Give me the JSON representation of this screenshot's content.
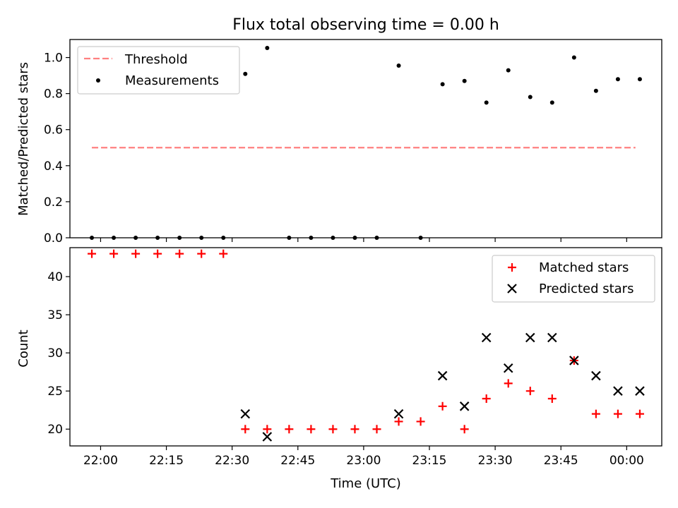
{
  "figure": {
    "title": "Flux total observing time = 0.00 h"
  },
  "chart_data": [
    {
      "type": "scatter",
      "title": "Flux total observing time = 0.00 h",
      "xlabel": "",
      "ylabel": "Matched/Predicted stars",
      "ylim": [
        0.0,
        1.1
      ],
      "yticks": [
        "0.0",
        "0.2",
        "0.4",
        "0.6",
        "0.8",
        "1.0"
      ],
      "xlim": [
        "21:53",
        "00:08"
      ],
      "xticks": [
        "22:00",
        "22:15",
        "22:30",
        "22:45",
        "23:00",
        "23:15",
        "23:30",
        "23:45",
        "00:00"
      ],
      "xticklabels_visible": false,
      "grid": false,
      "legend_position": "top-left",
      "threshold": {
        "name": "Threshold",
        "value": 0.5,
        "x_start": "21:58",
        "x_end": "00:02",
        "color": "#ff8080",
        "style": "dashed"
      },
      "series": [
        {
          "name": "Measurements",
          "marker": "dot",
          "color": "#000000",
          "x": [
            "21:58",
            "22:03",
            "22:08",
            "22:13",
            "22:18",
            "22:23",
            "22:28",
            "22:33",
            "22:38",
            "22:43",
            "22:48",
            "22:53",
            "22:58",
            "23:03",
            "23:08",
            "23:13",
            "23:18",
            "23:23",
            "23:28",
            "23:33",
            "23:38",
            "23:43",
            "23:48",
            "23:53",
            "23:58",
            "00:03"
          ],
          "y": [
            0.0,
            0.0,
            0.0,
            0.0,
            0.0,
            0.0,
            0.0,
            0.909,
            1.053,
            0.0,
            0.0,
            0.0,
            0.0,
            0.0,
            0.955,
            0.0,
            0.852,
            0.87,
            0.75,
            0.929,
            0.781,
            0.75,
            1.0,
            0.815,
            0.88,
            0.88
          ]
        }
      ]
    },
    {
      "type": "scatter",
      "xlabel": "Time (UTC)",
      "ylabel": "Count",
      "ylim": [
        17.8,
        43.8
      ],
      "yticks": [
        "20",
        "25",
        "30",
        "35",
        "40"
      ],
      "xlim": [
        "21:53",
        "00:08"
      ],
      "xticks": [
        "22:00",
        "22:15",
        "22:30",
        "22:45",
        "23:00",
        "23:15",
        "23:30",
        "23:45",
        "00:00"
      ],
      "grid": false,
      "legend_position": "top-right",
      "series": [
        {
          "name": "Matched stars",
          "marker": "plus",
          "color": "#ff0000",
          "x": [
            "21:58",
            "22:03",
            "22:08",
            "22:13",
            "22:18",
            "22:23",
            "22:28",
            "22:33",
            "22:38",
            "22:43",
            "22:48",
            "22:53",
            "22:58",
            "23:03",
            "23:08",
            "23:13",
            "23:18",
            "23:23",
            "23:28",
            "23:33",
            "23:38",
            "23:43",
            "23:48",
            "23:53",
            "23:58",
            "00:03"
          ],
          "y": [
            43,
            43,
            43,
            43,
            43,
            43,
            43,
            20,
            20,
            20,
            20,
            20,
            20,
            20,
            21,
            21,
            23,
            20,
            24,
            26,
            25,
            24,
            29,
            22,
            22,
            22
          ]
        },
        {
          "name": "Predicted stars",
          "marker": "x",
          "color": "#000000",
          "x": [
            "22:33",
            "22:38",
            "23:08",
            "23:18",
            "23:23",
            "23:28",
            "23:33",
            "23:38",
            "23:43",
            "23:48",
            "23:53",
            "23:58",
            "00:03"
          ],
          "y": [
            22,
            19,
            22,
            27,
            23,
            32,
            28,
            32,
            32,
            29,
            27,
            25,
            25
          ]
        }
      ]
    }
  ]
}
